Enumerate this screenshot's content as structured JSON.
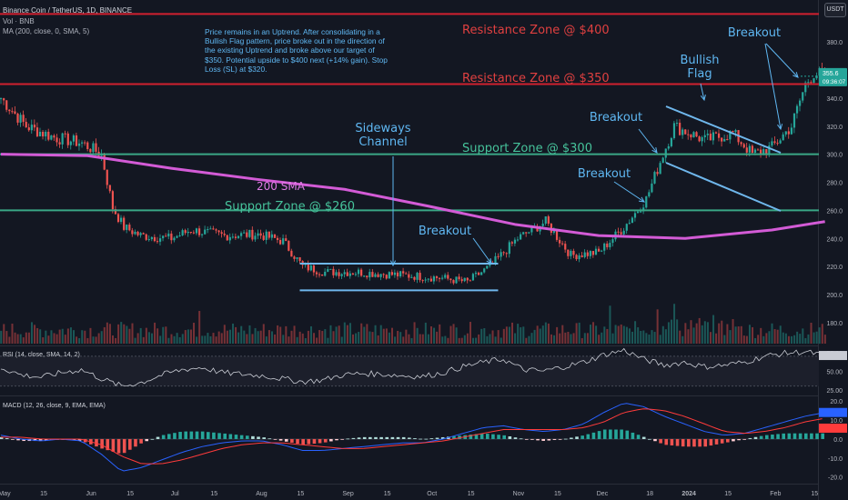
{
  "header": {
    "symbol_line": "Binance Coin / TetherUS, 1D, BINANCE",
    "volume_line": "Vol · BNB",
    "ma_line": "MA (200, close, 0, SMA, 5)",
    "currency_badge": "USDT"
  },
  "note": "Price remains in an Uptrend. After consolidating in a Bullish Flag pattern, price broke out in the direction of the existing Uptrend and broke above our target of $350. Potential upside to $400 next (+14% gain). Stop Loss (SL) at $320.",
  "colors": {
    "background": "#131722",
    "up": "#26a69a",
    "down": "#ef5350",
    "sma": "#d35bd6",
    "resistance": "#d0202f",
    "support": "#3aa786",
    "annotation": "#5fb7f2",
    "channel": "#6fb7ec"
  },
  "chart_data": [
    {
      "type": "candlestick",
      "title": "Binance Coin / TetherUS, 1D, BINANCE",
      "y_ticks": [
        "180.0",
        "200.0",
        "220.0",
        "240.0",
        "260.0",
        "280.0",
        "300.0",
        "320.0",
        "340.0",
        "360.0",
        "380.0",
        "400.0"
      ],
      "x_ticks": [
        "May",
        "15",
        "Jun",
        "15",
        "Jul",
        "15",
        "Aug",
        "15",
        "Sep",
        "15",
        "Oct",
        "15",
        "Nov",
        "15",
        "Dec",
        "18",
        "2024",
        "15",
        "Feb",
        "15"
      ],
      "ylim": [
        165,
        408
      ],
      "last_price": {
        "label": "355.6",
        "time": "09:36:07",
        "value": 355.6
      },
      "price_path": [
        {
          "x": "May 1",
          "y": 340
        },
        {
          "x": "May 10",
          "y": 320
        },
        {
          "x": "May 20",
          "y": 312
        },
        {
          "x": "May 30",
          "y": 308
        },
        {
          "x": "Jun 6",
          "y": 300
        },
        {
          "x": "Jun 10",
          "y": 262
        },
        {
          "x": "Jun 14",
          "y": 248
        },
        {
          "x": "Jun 20",
          "y": 242
        },
        {
          "x": "Jul 1",
          "y": 240
        },
        {
          "x": "Jul 8",
          "y": 246
        },
        {
          "x": "Jul 20",
          "y": 242
        },
        {
          "x": "Aug 1",
          "y": 243
        },
        {
          "x": "Aug 10",
          "y": 238
        },
        {
          "x": "Aug 17",
          "y": 220
        },
        {
          "x": "Aug 25",
          "y": 216
        },
        {
          "x": "Sep 5",
          "y": 216
        },
        {
          "x": "Sep 20",
          "y": 214
        },
        {
          "x": "Oct 5",
          "y": 212
        },
        {
          "x": "Oct 15",
          "y": 209
        },
        {
          "x": "Oct 23",
          "y": 220
        },
        {
          "x": "Nov 2",
          "y": 240
        },
        {
          "x": "Nov 12",
          "y": 252
        },
        {
          "x": "Nov 21",
          "y": 228
        },
        {
          "x": "Dec 1",
          "y": 230
        },
        {
          "x": "Dec 10",
          "y": 248
        },
        {
          "x": "Dec 18",
          "y": 268
        },
        {
          "x": "Dec 24",
          "y": 300
        },
        {
          "x": "Dec 28",
          "y": 320
        },
        {
          "x": "Jan 8",
          "y": 310
        },
        {
          "x": "Jan 18",
          "y": 315
        },
        {
          "x": "Jan 25",
          "y": 300
        },
        {
          "x": "Feb 1",
          "y": 305
        },
        {
          "x": "Feb 8",
          "y": 320
        },
        {
          "x": "Feb 13",
          "y": 350
        },
        {
          "x": "Feb 16",
          "y": 358
        },
        {
          "x": "Feb 20",
          "y": 355.6
        }
      ],
      "sma_200": [
        {
          "x": "May 1",
          "y": 300
        },
        {
          "x": "Jun 1",
          "y": 299
        },
        {
          "x": "Jul 1",
          "y": 290
        },
        {
          "x": "Aug 1",
          "y": 282
        },
        {
          "x": "Sep 1",
          "y": 275
        },
        {
          "x": "Oct 1",
          "y": 263
        },
        {
          "x": "Nov 1",
          "y": 250
        },
        {
          "x": "Dec 1",
          "y": 242
        },
        {
          "x": "Jan 1",
          "y": 240
        },
        {
          "x": "Feb 1",
          "y": 246
        },
        {
          "x": "Feb 20",
          "y": 252
        }
      ],
      "levels": [
        {
          "label": "Resistance Zone @ $400",
          "value": 400,
          "kind": "resistance"
        },
        {
          "label": "Resistance Zone @ $350",
          "value": 350,
          "kind": "resistance"
        },
        {
          "label": "Support Zone @ $300",
          "value": 300,
          "kind": "support"
        },
        {
          "label": "Support Zone @ $260",
          "value": 260,
          "kind": "support"
        }
      ],
      "annotations": [
        "Sideways Channel",
        "Breakout",
        "Breakout",
        "Breakout",
        "Breakout",
        "Bullish Flag",
        "200 SMA"
      ],
      "grid": false
    },
    {
      "type": "line",
      "title": "RSI (14, close, SMA, 14, 2)",
      "y_ticks": [
        "75.00",
        "50.00",
        "25.00"
      ],
      "ylim": [
        20,
        82
      ],
      "levels": [
        70,
        30
      ],
      "series": [
        {
          "name": "RSI",
          "values": [
            55,
            45,
            42,
            48,
            52,
            40,
            30,
            35,
            45,
            52,
            55,
            48,
            46,
            44,
            40,
            36,
            38,
            45,
            47,
            46,
            44,
            43,
            48,
            56,
            62,
            66,
            52,
            50,
            56,
            62,
            72,
            78,
            66,
            58,
            62,
            56,
            58,
            62,
            70,
            74,
            76,
            71
          ]
        }
      ]
    },
    {
      "type": "bar",
      "title": "MACD (12, 26, close, 9, EMA, EMA)",
      "y_ticks": [
        "20.0",
        "10.0",
        "0.0",
        "-10.0",
        "-20.0"
      ],
      "ylim": [
        -23,
        22
      ],
      "series": [
        {
          "name": "MACD",
          "values": [
            2,
            0,
            -1,
            0,
            -1,
            -8,
            -17,
            -15,
            -11,
            -7,
            -4,
            -2,
            -1,
            -1,
            -3,
            -6,
            -6,
            -5,
            -4,
            -3,
            -2,
            -2,
            0,
            3,
            6,
            7,
            5,
            4,
            5,
            8,
            14,
            19,
            17,
            12,
            8,
            4,
            2,
            3,
            6,
            9,
            12,
            14
          ]
        },
        {
          "name": "Signal",
          "values": [
            1,
            1,
            0,
            0,
            0,
            -3,
            -9,
            -13,
            -13,
            -11,
            -8,
            -5,
            -3,
            -2,
            -2,
            -3,
            -4,
            -5,
            -5,
            -4,
            -3,
            -2,
            -1,
            1,
            3,
            5,
            5,
            5,
            5,
            6,
            9,
            14,
            16,
            15,
            12,
            8,
            4,
            3,
            4,
            6,
            9,
            11
          ]
        }
      ]
    }
  ]
}
